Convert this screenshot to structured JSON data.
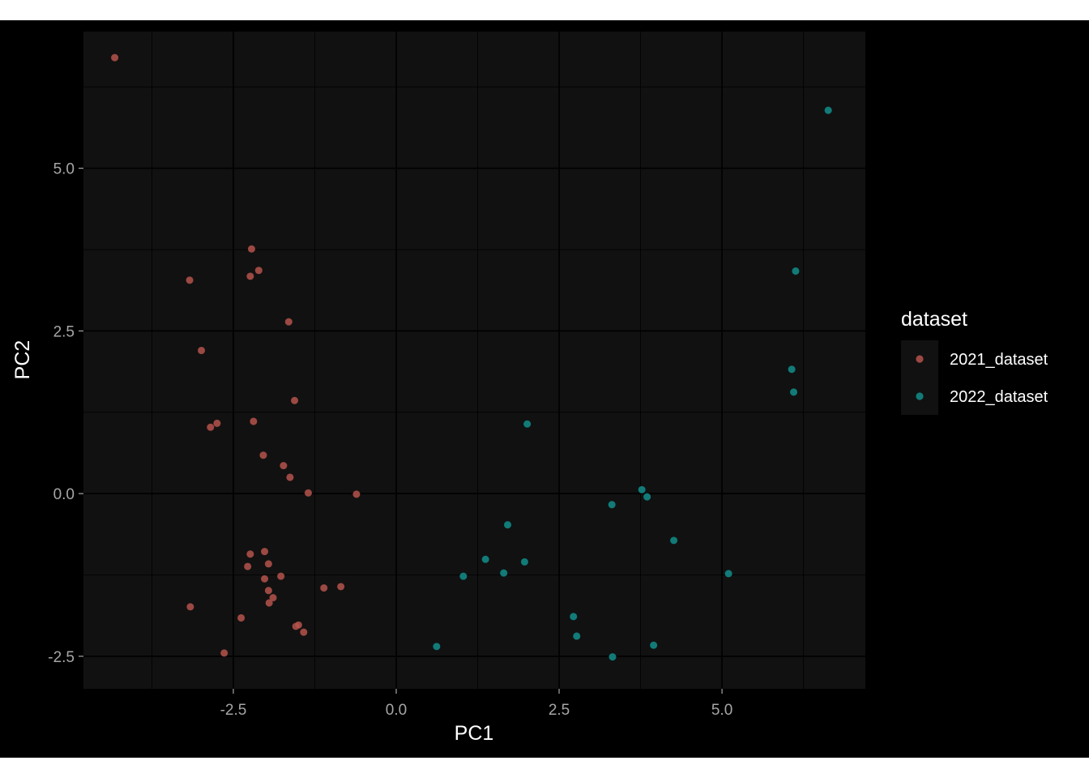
{
  "chart_data": {
    "type": "scatter",
    "title": "",
    "xlabel": "PC1",
    "ylabel": "PC2",
    "xlim": [
      -4.8,
      7.2
    ],
    "ylim": [
      -3.0,
      7.1
    ],
    "x_ticks": [
      -2.5,
      0.0,
      2.5,
      5.0
    ],
    "x_tick_labels": [
      "-2.5",
      "0.0",
      "2.5",
      "5.0"
    ],
    "y_ticks": [
      -2.5,
      0.0,
      2.5,
      5.0
    ],
    "y_tick_labels": [
      "-2.5",
      "0.0",
      "2.5",
      "5.0"
    ],
    "grid": true,
    "legend": {
      "title": "dataset",
      "position": "right"
    },
    "colors": {
      "outer_background": "#000000",
      "panel_background": "#111111",
      "grid_major": "#000000",
      "grid_minor": "#000000",
      "axis_text": "#a6a6a6",
      "axis_title": "#ffffff",
      "legend_text": "#ffffff",
      "legend_key_background": "#111111"
    },
    "series": [
      {
        "name": "2021_dataset",
        "color": "#b5544c",
        "points": [
          [
            -4.32,
            6.7
          ],
          [
            -3.17,
            3.28
          ],
          [
            -2.99,
            2.2
          ],
          [
            -2.85,
            1.02
          ],
          [
            -2.75,
            1.08
          ],
          [
            -2.22,
            3.76
          ],
          [
            -2.24,
            3.34
          ],
          [
            -2.11,
            3.43
          ],
          [
            -1.65,
            2.64
          ],
          [
            -1.56,
            1.43
          ],
          [
            -2.19,
            1.11
          ],
          [
            -2.04,
            0.59
          ],
          [
            -1.73,
            0.43
          ],
          [
            -1.63,
            0.25
          ],
          [
            -1.35,
            0.01
          ],
          [
            -0.61,
            -0.01
          ],
          [
            -2.24,
            -0.93
          ],
          [
            -2.02,
            -0.89
          ],
          [
            -2.28,
            -1.12
          ],
          [
            -1.96,
            -1.08
          ],
          [
            -1.77,
            -1.27
          ],
          [
            -2.02,
            -1.31
          ],
          [
            -1.96,
            -1.49
          ],
          [
            -1.89,
            -1.6
          ],
          [
            -1.95,
            -1.68
          ],
          [
            -1.11,
            -1.45
          ],
          [
            -0.85,
            -1.43
          ],
          [
            -3.16,
            -1.74
          ],
          [
            -2.38,
            -1.91
          ],
          [
            -1.54,
            -2.04
          ],
          [
            -1.5,
            -2.02
          ],
          [
            -1.42,
            -2.13
          ],
          [
            -2.64,
            -2.45
          ]
        ]
      },
      {
        "name": "2022_dataset",
        "color": "#138e8b",
        "points": [
          [
            6.63,
            5.89
          ],
          [
            6.13,
            3.42
          ],
          [
            6.07,
            1.91
          ],
          [
            6.1,
            1.56
          ],
          [
            2.01,
            1.07
          ],
          [
            3.77,
            0.06
          ],
          [
            3.85,
            -0.05
          ],
          [
            3.31,
            -0.17
          ],
          [
            1.71,
            -0.48
          ],
          [
            4.26,
            -0.72
          ],
          [
            5.1,
            -1.23
          ],
          [
            1.37,
            -1.01
          ],
          [
            1.97,
            -1.05
          ],
          [
            1.65,
            -1.22
          ],
          [
            1.03,
            -1.27
          ],
          [
            2.72,
            -1.89
          ],
          [
            2.77,
            -2.19
          ],
          [
            3.95,
            -2.33
          ],
          [
            0.62,
            -2.35
          ],
          [
            3.32,
            -2.51
          ]
        ]
      }
    ]
  }
}
